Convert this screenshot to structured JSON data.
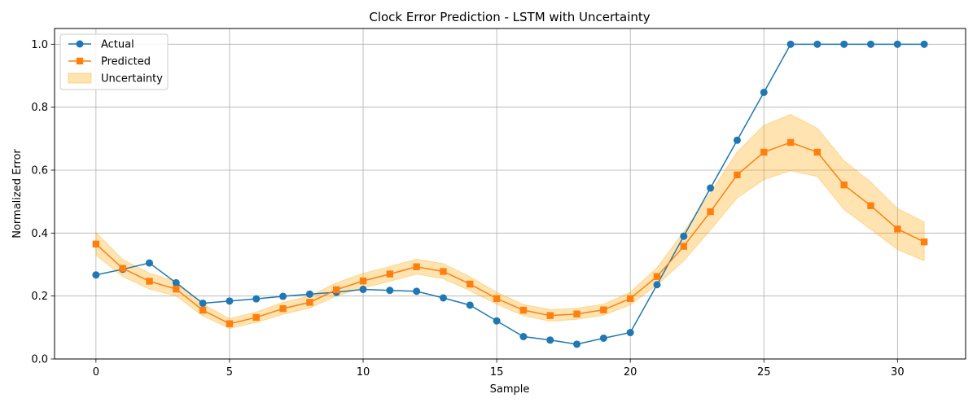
{
  "chart_data": {
    "type": "line",
    "title": "Clock Error Prediction - LSTM with Uncertainty",
    "xlabel": "Sample",
    "ylabel": "Normalized Error",
    "xlim": [
      -1.55,
      32.55
    ],
    "ylim": [
      0.0,
      1.05
    ],
    "xticks": [
      0,
      5,
      10,
      15,
      20,
      25,
      30
    ],
    "yticks": [
      0.0,
      0.2,
      0.4,
      0.6,
      0.8,
      1.0
    ],
    "xtick_labels": [
      "0",
      "5",
      "10",
      "15",
      "20",
      "25",
      "30"
    ],
    "ytick_labels": [
      "0.0",
      "0.2",
      "0.4",
      "0.6",
      "0.8",
      "1.0"
    ],
    "grid": true,
    "legend_position": "top-left",
    "x": [
      0,
      1,
      2,
      3,
      4,
      5,
      6,
      7,
      8,
      9,
      10,
      11,
      12,
      13,
      14,
      15,
      16,
      17,
      18,
      19,
      20,
      21,
      22,
      23,
      24,
      25,
      26,
      27,
      28,
      29,
      30,
      31
    ],
    "series": [
      {
        "name": "Actual",
        "color": "#1f77b4",
        "marker": "circle",
        "values": [
          0.267,
          0.285,
          0.305,
          0.242,
          0.177,
          0.184,
          0.191,
          0.199,
          0.206,
          0.212,
          0.221,
          0.218,
          0.215,
          0.194,
          0.171,
          0.121,
          0.071,
          0.06,
          0.047,
          0.066,
          0.084,
          0.236,
          0.39,
          0.543,
          0.695,
          0.847,
          1.0,
          1.0,
          1.0,
          1.0,
          1.0,
          1.0
        ]
      },
      {
        "name": "Predicted",
        "color": "#ff7f0e",
        "marker": "square",
        "values": [
          0.365,
          0.288,
          0.247,
          0.222,
          0.155,
          0.112,
          0.132,
          0.16,
          0.18,
          0.22,
          0.248,
          0.27,
          0.293,
          0.278,
          0.238,
          0.192,
          0.155,
          0.138,
          0.143,
          0.156,
          0.192,
          0.262,
          0.358,
          0.468,
          0.585,
          0.657,
          0.688,
          0.657,
          0.553,
          0.487,
          0.413,
          0.372
        ]
      }
    ],
    "band": {
      "name": "Uncertainty",
      "color": "#ffa500",
      "opacity": 0.3,
      "lower": [
        0.33,
        0.262,
        0.222,
        0.2,
        0.137,
        0.097,
        0.116,
        0.142,
        0.162,
        0.2,
        0.226,
        0.247,
        0.27,
        0.255,
        0.217,
        0.174,
        0.138,
        0.12,
        0.126,
        0.139,
        0.172,
        0.235,
        0.312,
        0.41,
        0.512,
        0.57,
        0.598,
        0.58,
        0.475,
        0.412,
        0.348,
        0.312
      ],
      "upper": [
        0.402,
        0.316,
        0.273,
        0.246,
        0.174,
        0.128,
        0.149,
        0.18,
        0.2,
        0.242,
        0.272,
        0.294,
        0.317,
        0.303,
        0.261,
        0.212,
        0.173,
        0.157,
        0.161,
        0.174,
        0.212,
        0.29,
        0.404,
        0.528,
        0.658,
        0.742,
        0.777,
        0.733,
        0.63,
        0.562,
        0.478,
        0.435
      ]
    }
  }
}
